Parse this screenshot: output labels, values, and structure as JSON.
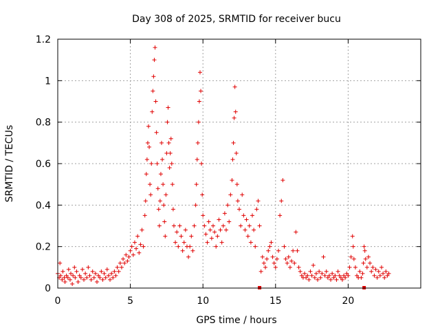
{
  "chart_data": {
    "type": "scatter",
    "title": "Day 308 of 2025, SRMTID for receiver bucu",
    "xlabel": "GPS time / hours",
    "ylabel": "SRMTID / TECUs",
    "xlim": [
      0,
      25
    ],
    "ylim": [
      0,
      1.2
    ],
    "xticks": [
      0,
      5,
      10,
      15,
      20
    ],
    "xtick_labels": [
      "0",
      "5",
      "10",
      "15",
      "20"
    ],
    "yticks": [
      0,
      0.2,
      0.4,
      0.6,
      0.8,
      1.0,
      1.2
    ],
    "ytick_labels": [
      "0",
      "0.2",
      "0.4",
      "0.6",
      "0.8",
      "1",
      "1.2"
    ],
    "grid": true,
    "marker": "plus",
    "color": "#e00000",
    "gap_markers_x": [
      13.9,
      21.1
    ],
    "series": [
      {
        "name": "SRMTID",
        "points": [
          [
            0.0,
            0.07
          ],
          [
            0.1,
            0.05
          ],
          [
            0.15,
            0.12
          ],
          [
            0.2,
            0.06
          ],
          [
            0.3,
            0.04
          ],
          [
            0.35,
            0.08
          ],
          [
            0.45,
            0.05
          ],
          [
            0.5,
            0.03
          ],
          [
            0.6,
            0.06
          ],
          [
            0.7,
            0.05
          ],
          [
            0.75,
            0.09
          ],
          [
            0.85,
            0.04
          ],
          [
            0.9,
            0.07
          ],
          [
            1.0,
            0.02
          ],
          [
            1.05,
            0.06
          ],
          [
            1.15,
            0.1
          ],
          [
            1.2,
            0.05
          ],
          [
            1.3,
            0.08
          ],
          [
            1.4,
            0.03
          ],
          [
            1.5,
            0.06
          ],
          [
            1.6,
            0.05
          ],
          [
            1.7,
            0.09
          ],
          [
            1.8,
            0.04
          ],
          [
            1.9,
            0.07
          ],
          [
            2.0,
            0.05
          ],
          [
            2.1,
            0.1
          ],
          [
            2.2,
            0.06
          ],
          [
            2.3,
            0.04
          ],
          [
            2.4,
            0.08
          ],
          [
            2.5,
            0.05
          ],
          [
            2.6,
            0.07
          ],
          [
            2.7,
            0.03
          ],
          [
            2.8,
            0.06
          ],
          [
            2.9,
            0.05
          ],
          [
            3.0,
            0.08
          ],
          [
            3.1,
            0.04
          ],
          [
            3.2,
            0.07
          ],
          [
            3.3,
            0.05
          ],
          [
            3.4,
            0.09
          ],
          [
            3.5,
            0.06
          ],
          [
            3.6,
            0.04
          ],
          [
            3.7,
            0.07
          ],
          [
            3.8,
            0.05
          ],
          [
            3.9,
            0.08
          ],
          [
            4.0,
            0.06
          ],
          [
            4.1,
            0.1
          ],
          [
            4.2,
            0.08
          ],
          [
            4.3,
            0.12
          ],
          [
            4.4,
            0.1
          ],
          [
            4.5,
            0.14
          ],
          [
            4.6,
            0.12
          ],
          [
            4.7,
            0.16
          ],
          [
            4.8,
            0.13
          ],
          [
            4.9,
            0.15
          ],
          [
            5.0,
            0.18
          ],
          [
            5.1,
            0.2
          ],
          [
            5.2,
            0.16
          ],
          [
            5.3,
            0.22
          ],
          [
            5.4,
            0.19
          ],
          [
            5.5,
            0.25
          ],
          [
            5.6,
            0.17
          ],
          [
            5.7,
            0.21
          ],
          [
            5.8,
            0.28
          ],
          [
            5.9,
            0.2
          ],
          [
            6.0,
            0.35
          ],
          [
            6.05,
            0.42
          ],
          [
            6.1,
            0.55
          ],
          [
            6.15,
            0.62
          ],
          [
            6.2,
            0.7
          ],
          [
            6.25,
            0.78
          ],
          [
            6.3,
            0.68
          ],
          [
            6.35,
            0.5
          ],
          [
            6.4,
            0.45
          ],
          [
            6.45,
            0.6
          ],
          [
            6.5,
            0.85
          ],
          [
            6.55,
            0.95
          ],
          [
            6.6,
            1.02
          ],
          [
            6.65,
            1.1
          ],
          [
            6.7,
            1.16
          ],
          [
            6.75,
            0.9
          ],
          [
            6.8,
            0.75
          ],
          [
            6.85,
            0.6
          ],
          [
            6.9,
            0.48
          ],
          [
            6.95,
            0.38
          ],
          [
            7.0,
            0.3
          ],
          [
            7.05,
            0.42
          ],
          [
            7.1,
            0.55
          ],
          [
            7.15,
            0.7
          ],
          [
            7.2,
            0.62
          ],
          [
            7.25,
            0.5
          ],
          [
            7.3,
            0.4
          ],
          [
            7.35,
            0.32
          ],
          [
            7.4,
            0.25
          ],
          [
            7.45,
            0.45
          ],
          [
            7.5,
            0.65
          ],
          [
            7.55,
            0.8
          ],
          [
            7.6,
            0.87
          ],
          [
            7.65,
            0.7
          ],
          [
            7.7,
            0.58
          ],
          [
            7.75,
            0.65
          ],
          [
            7.8,
            0.72
          ],
          [
            7.85,
            0.6
          ],
          [
            7.9,
            0.5
          ],
          [
            7.95,
            0.38
          ],
          [
            8.0,
            0.3
          ],
          [
            8.1,
            0.22
          ],
          [
            8.2,
            0.27
          ],
          [
            8.3,
            0.2
          ],
          [
            8.4,
            0.3
          ],
          [
            8.5,
            0.25
          ],
          [
            8.6,
            0.18
          ],
          [
            8.7,
            0.22
          ],
          [
            8.8,
            0.28
          ],
          [
            8.9,
            0.2
          ],
          [
            9.0,
            0.15
          ],
          [
            9.1,
            0.2
          ],
          [
            9.2,
            0.25
          ],
          [
            9.3,
            0.18
          ],
          [
            9.4,
            0.3
          ],
          [
            9.5,
            0.4
          ],
          [
            9.55,
            0.5
          ],
          [
            9.6,
            0.62
          ],
          [
            9.65,
            0.7
          ],
          [
            9.7,
            0.8
          ],
          [
            9.75,
            0.9
          ],
          [
            9.8,
            1.04
          ],
          [
            9.85,
            0.95
          ],
          [
            9.9,
            0.6
          ],
          [
            9.95,
            0.45
          ],
          [
            10.0,
            0.35
          ],
          [
            10.1,
            0.3
          ],
          [
            10.2,
            0.26
          ],
          [
            10.3,
            0.22
          ],
          [
            10.4,
            0.32
          ],
          [
            10.5,
            0.28
          ],
          [
            10.6,
            0.24
          ],
          [
            10.7,
            0.3
          ],
          [
            10.8,
            0.27
          ],
          [
            10.9,
            0.2
          ],
          [
            11.0,
            0.25
          ],
          [
            11.1,
            0.33
          ],
          [
            11.2,
            0.28
          ],
          [
            11.3,
            0.22
          ],
          [
            11.4,
            0.3
          ],
          [
            11.5,
            0.36
          ],
          [
            11.6,
            0.28
          ],
          [
            11.7,
            0.4
          ],
          [
            11.8,
            0.32
          ],
          [
            11.9,
            0.45
          ],
          [
            12.0,
            0.52
          ],
          [
            12.05,
            0.62
          ],
          [
            12.1,
            0.7
          ],
          [
            12.15,
            0.82
          ],
          [
            12.2,
            0.97
          ],
          [
            12.25,
            0.85
          ],
          [
            12.3,
            0.65
          ],
          [
            12.35,
            0.5
          ],
          [
            12.4,
            0.42
          ],
          [
            12.5,
            0.38
          ],
          [
            12.6,
            0.3
          ],
          [
            12.7,
            0.45
          ],
          [
            12.8,
            0.35
          ],
          [
            12.9,
            0.28
          ],
          [
            13.0,
            0.33
          ],
          [
            13.1,
            0.25
          ],
          [
            13.2,
            0.3
          ],
          [
            13.3,
            0.22
          ],
          [
            13.4,
            0.35
          ],
          [
            13.5,
            0.28
          ],
          [
            13.6,
            0.2
          ],
          [
            13.7,
            0.38
          ],
          [
            13.8,
            0.42
          ],
          [
            13.9,
            0.3
          ],
          [
            14.0,
            0.08
          ],
          [
            14.1,
            0.15
          ],
          [
            14.2,
            0.12
          ],
          [
            14.3,
            0.1
          ],
          [
            14.4,
            0.14
          ],
          [
            14.5,
            0.18
          ],
          [
            14.6,
            0.2
          ],
          [
            14.7,
            0.22
          ],
          [
            14.8,
            0.15
          ],
          [
            14.9,
            0.12
          ],
          [
            15.0,
            0.1
          ],
          [
            15.1,
            0.14
          ],
          [
            15.2,
            0.18
          ],
          [
            15.3,
            0.35
          ],
          [
            15.4,
            0.42
          ],
          [
            15.5,
            0.52
          ],
          [
            15.6,
            0.2
          ],
          [
            15.7,
            0.14
          ],
          [
            15.8,
            0.12
          ],
          [
            15.9,
            0.15
          ],
          [
            16.0,
            0.1
          ],
          [
            16.1,
            0.13
          ],
          [
            16.2,
            0.18
          ],
          [
            16.3,
            0.12
          ],
          [
            16.4,
            0.27
          ],
          [
            16.5,
            0.18
          ],
          [
            16.6,
            0.1
          ],
          [
            16.7,
            0.08
          ],
          [
            16.8,
            0.06
          ],
          [
            16.9,
            0.05
          ],
          [
            17.0,
            0.07
          ],
          [
            17.1,
            0.05
          ],
          [
            17.2,
            0.06
          ],
          [
            17.3,
            0.04
          ],
          [
            17.4,
            0.08
          ],
          [
            17.5,
            0.06
          ],
          [
            17.6,
            0.11
          ],
          [
            17.7,
            0.05
          ],
          [
            17.8,
            0.07
          ],
          [
            17.9,
            0.04
          ],
          [
            18.0,
            0.08
          ],
          [
            18.1,
            0.05
          ],
          [
            18.2,
            0.07
          ],
          [
            18.3,
            0.15
          ],
          [
            18.4,
            0.06
          ],
          [
            18.5,
            0.08
          ],
          [
            18.6,
            0.05
          ],
          [
            18.7,
            0.06
          ],
          [
            18.8,
            0.04
          ],
          [
            18.9,
            0.07
          ],
          [
            19.0,
            0.05
          ],
          [
            19.1,
            0.06
          ],
          [
            19.2,
            0.04
          ],
          [
            19.3,
            0.08
          ],
          [
            19.4,
            0.06
          ],
          [
            19.5,
            0.05
          ],
          [
            19.6,
            0.04
          ],
          [
            19.7,
            0.06
          ],
          [
            19.8,
            0.05
          ],
          [
            19.9,
            0.07
          ],
          [
            20.0,
            0.06
          ],
          [
            20.1,
            0.1
          ],
          [
            20.2,
            0.15
          ],
          [
            20.3,
            0.25
          ],
          [
            20.35,
            0.2
          ],
          [
            20.4,
            0.14
          ],
          [
            20.5,
            0.1
          ],
          [
            20.6,
            0.06
          ],
          [
            20.7,
            0.05
          ],
          [
            20.8,
            0.08
          ],
          [
            20.9,
            0.05
          ],
          [
            21.0,
            0.07
          ],
          [
            21.05,
            0.12
          ],
          [
            21.1,
            0.2
          ],
          [
            21.15,
            0.18
          ],
          [
            21.2,
            0.14
          ],
          [
            21.3,
            0.1
          ],
          [
            21.4,
            0.15
          ],
          [
            21.5,
            0.12
          ],
          [
            21.6,
            0.08
          ],
          [
            21.7,
            0.1
          ],
          [
            21.8,
            0.06
          ],
          [
            21.9,
            0.09
          ],
          [
            22.0,
            0.05
          ],
          [
            22.1,
            0.08
          ],
          [
            22.2,
            0.06
          ],
          [
            22.3,
            0.1
          ],
          [
            22.4,
            0.07
          ],
          [
            22.5,
            0.05
          ],
          [
            22.6,
            0.08
          ],
          [
            22.7,
            0.06
          ],
          [
            22.8,
            0.07
          ]
        ]
      }
    ]
  }
}
